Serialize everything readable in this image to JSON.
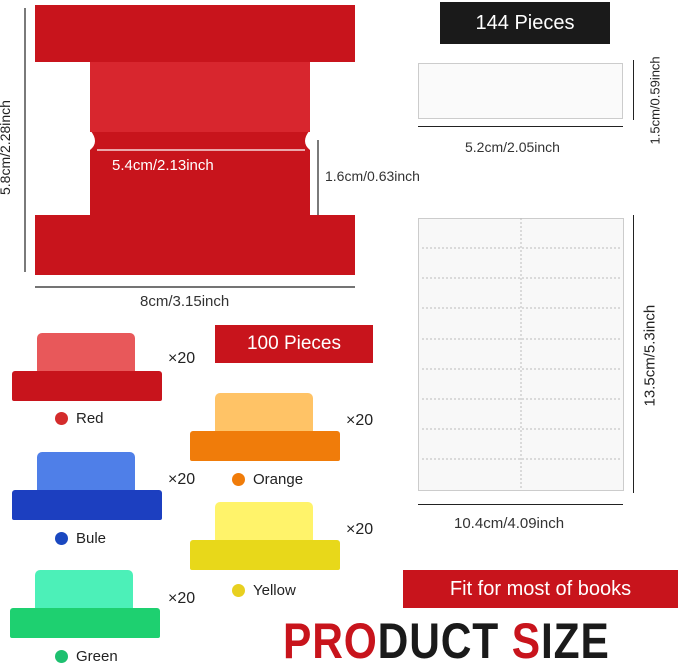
{
  "large_tab": {
    "height": "5.8cm/2.28inch",
    "width": "8cm/3.15inch",
    "inner_width": "5.4cm/2.13inch",
    "neck_height": "1.6cm/0.63inch",
    "color": "#c8141c"
  },
  "label_strip": {
    "badge": "144 Pieces",
    "width": "5.2cm/2.05inch",
    "height": "1.5cm/0.59inch"
  },
  "label_sheet": {
    "width": "10.4cm/4.09inch",
    "height": "13.5cm/5.3inch"
  },
  "tabs_badge": "100 Pieces",
  "colors": [
    {
      "name": "Red",
      "count": "×20",
      "top": "#e8585a",
      "base": "#c8141c",
      "dot": "#d42c2c"
    },
    {
      "name": "Orange",
      "count": "×20",
      "top": "#ffc366",
      "base": "#f07c0a",
      "dot": "#f07c0a"
    },
    {
      "name": "Bule",
      "count": "×20",
      "top": "#4f7fe8",
      "base": "#1c3fc0",
      "dot": "#1a48c0"
    },
    {
      "name": "Yellow",
      "count": "×20",
      "top": "#fff36a",
      "base": "#e8d81a",
      "dot": "#e8d020"
    },
    {
      "name": "Green",
      "count": "×20",
      "top": "#4cf0b8",
      "base": "#1ed070",
      "dot": "#1ec070"
    }
  ],
  "fit_badge": "Fit for most of books",
  "title": {
    "red_part": "PRO",
    "black_part": "DUCT",
    "red_part2": "S",
    "black_part2": "IZE"
  }
}
